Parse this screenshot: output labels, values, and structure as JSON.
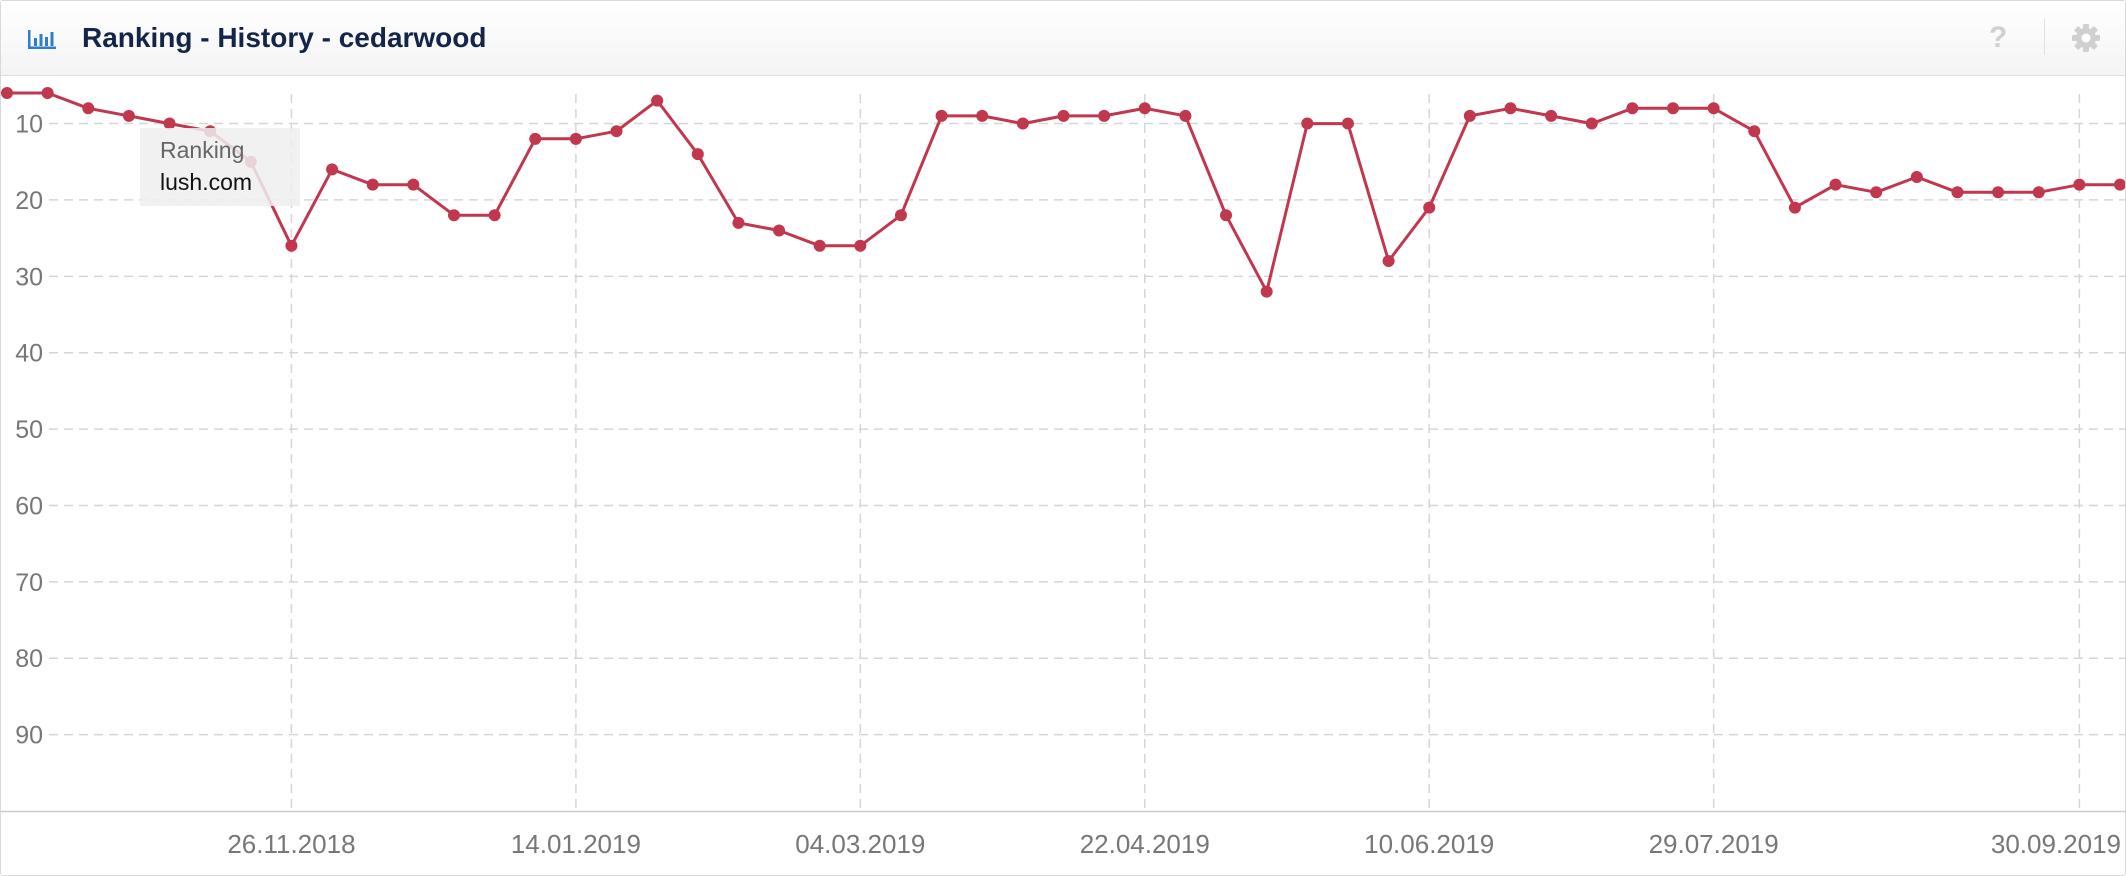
{
  "header": {
    "title": "Ranking - History - cedarwood",
    "icon": "bar-chart-icon",
    "help_label": "?",
    "help_icon": "question-icon",
    "settings_icon": "gear-icon"
  },
  "colors": {
    "line": "#c0374e",
    "title": "#14254a",
    "icon": "#2f7dd1",
    "grid": "#d6d6d6"
  },
  "tooltip": {
    "title": "Ranking",
    "value": "lush.com"
  },
  "chart_data": {
    "type": "line",
    "title": "Ranking - History - cedarwood",
    "xlabel": "",
    "ylabel": "",
    "y_inverted": true,
    "ylim": [
      6,
      100
    ],
    "yticks": [
      10,
      20,
      30,
      40,
      50,
      60,
      70,
      80,
      90
    ],
    "xticks": [
      "26.11.2018",
      "14.01.2019",
      "04.03.2019",
      "22.04.2019",
      "10.06.2019",
      "29.07.2019",
      "30.09.2019"
    ],
    "grid": true,
    "legend": "none",
    "series": [
      {
        "name": "lush.com",
        "x": [
          "08.10.2018",
          "15.10.2018",
          "22.10.2018",
          "29.10.2018",
          "05.11.2018",
          "12.11.2018",
          "19.11.2018",
          "26.11.2018",
          "03.12.2018",
          "10.12.2018",
          "17.12.2018",
          "24.12.2018",
          "31.12.2018",
          "07.01.2019",
          "14.01.2019",
          "21.01.2019",
          "28.01.2019",
          "04.02.2019",
          "11.02.2019",
          "18.02.2019",
          "25.02.2019",
          "04.03.2019",
          "11.03.2019",
          "18.03.2019",
          "25.03.2019",
          "01.04.2019",
          "08.04.2019",
          "15.04.2019",
          "22.04.2019",
          "29.04.2019",
          "06.05.2019",
          "13.05.2019",
          "20.05.2019",
          "27.05.2019",
          "03.06.2019",
          "10.06.2019",
          "17.06.2019",
          "24.06.2019",
          "01.07.2019",
          "08.07.2019",
          "15.07.2019",
          "22.07.2019",
          "29.07.2019",
          "05.08.2019",
          "12.08.2019",
          "19.08.2019",
          "26.08.2019",
          "02.09.2019",
          "09.09.2019",
          "16.09.2019",
          "23.09.2019",
          "30.09.2019",
          "07.10.2019"
        ],
        "values": [
          6,
          6,
          8,
          9,
          10,
          11,
          15,
          26,
          16,
          18,
          18,
          22,
          22,
          12,
          12,
          11,
          7,
          14,
          23,
          24,
          26,
          26,
          22,
          9,
          9,
          10,
          9,
          9,
          8,
          9,
          22,
          32,
          10,
          10,
          28,
          21,
          9,
          8,
          9,
          10,
          8,
          8,
          8,
          11,
          21,
          18,
          19,
          17,
          19,
          19,
          19,
          18,
          18
        ]
      }
    ]
  }
}
